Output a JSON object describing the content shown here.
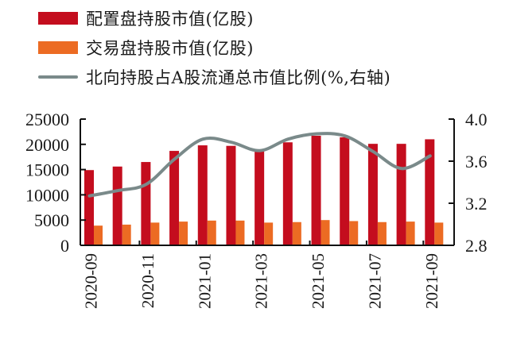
{
  "chart_data": {
    "type": "bar",
    "title": "",
    "categories": [
      "2020-09",
      "2020-10",
      "2020-11",
      "2020-12",
      "2021-01",
      "2021-02",
      "2021-03",
      "2021-04",
      "2021-05",
      "2021-06",
      "2021-07",
      "2021-08",
      "2021-09"
    ],
    "x_tick_labels": [
      "2020-09",
      "2020-11",
      "2021-01",
      "2021-03",
      "2021-05",
      "2021-07",
      "2021-09"
    ],
    "series": [
      {
        "name": "配置盘持股市值(亿股)",
        "type": "bar",
        "axis": "left",
        "color": "#c40d1e",
        "values": [
          14900,
          15600,
          16500,
          18700,
          19800,
          19700,
          18900,
          20400,
          21700,
          21400,
          20100,
          20100,
          21000
        ]
      },
      {
        "name": "交易盘持股市值(亿股)",
        "type": "bar",
        "axis": "left",
        "color": "#ec6b23",
        "values": [
          3900,
          4100,
          4500,
          4700,
          4900,
          4900,
          4500,
          4600,
          5000,
          4800,
          4600,
          4700,
          4500
        ]
      },
      {
        "name": "北向持股占A股流通总市值比例(%,右轴)",
        "type": "line",
        "axis": "right",
        "color": "#7a8a8a",
        "values": [
          3.27,
          3.32,
          3.38,
          3.62,
          3.81,
          3.78,
          3.7,
          3.81,
          3.86,
          3.84,
          3.69,
          3.53,
          3.65
        ]
      }
    ],
    "left_axis": {
      "label": "",
      "ylim": [
        0,
        25000
      ],
      "ticks": [
        0,
        5000,
        10000,
        15000,
        20000,
        25000
      ]
    },
    "right_axis": {
      "label": "",
      "ylim": [
        2.8,
        4.0
      ],
      "ticks": [
        "2.8",
        "3.2",
        "3.6",
        "4.0"
      ]
    },
    "grid": false,
    "legend_position": "top"
  },
  "legend": [
    {
      "label": "配置盘持股市值(亿股)",
      "kind": "bar",
      "color": "#c40d1e"
    },
    {
      "label": "交易盘持股市值(亿股)",
      "kind": "bar",
      "color": "#ec6b23"
    },
    {
      "label": "北向持股占A股流通总市值比例(%,右轴)",
      "kind": "line",
      "color": "#7a8a8a"
    }
  ]
}
